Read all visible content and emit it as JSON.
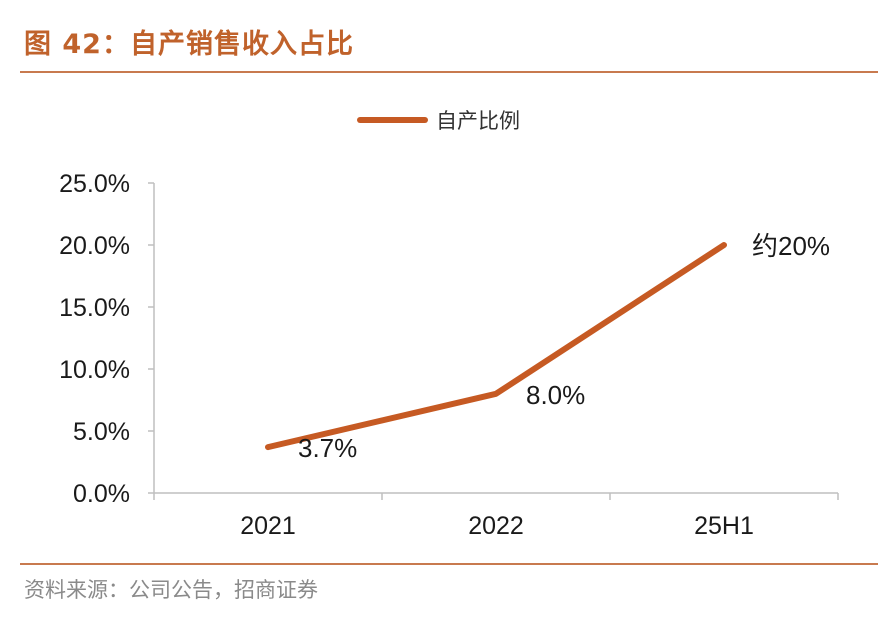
{
  "figure_title": "图 42：自产销售收入占比",
  "source": "资料来源：公司公告，招商证券",
  "colors": {
    "accent": "#c0622b",
    "line": "#c65a23",
    "rule": "#c87a4f"
  },
  "chart_data": {
    "type": "line",
    "categories": [
      "2021",
      "2022",
      "25H1"
    ],
    "series": [
      {
        "name": "自产比例",
        "values": [
          3.7,
          8.0,
          20.0
        ]
      }
    ],
    "data_labels": [
      "3.7%",
      "8.0%",
      "约20%"
    ],
    "yticks": [
      "0.0%",
      "5.0%",
      "10.0%",
      "15.0%",
      "20.0%",
      "25.0%"
    ],
    "ylim": [
      0,
      25
    ],
    "grid": false,
    "legend_position": "top-center"
  }
}
